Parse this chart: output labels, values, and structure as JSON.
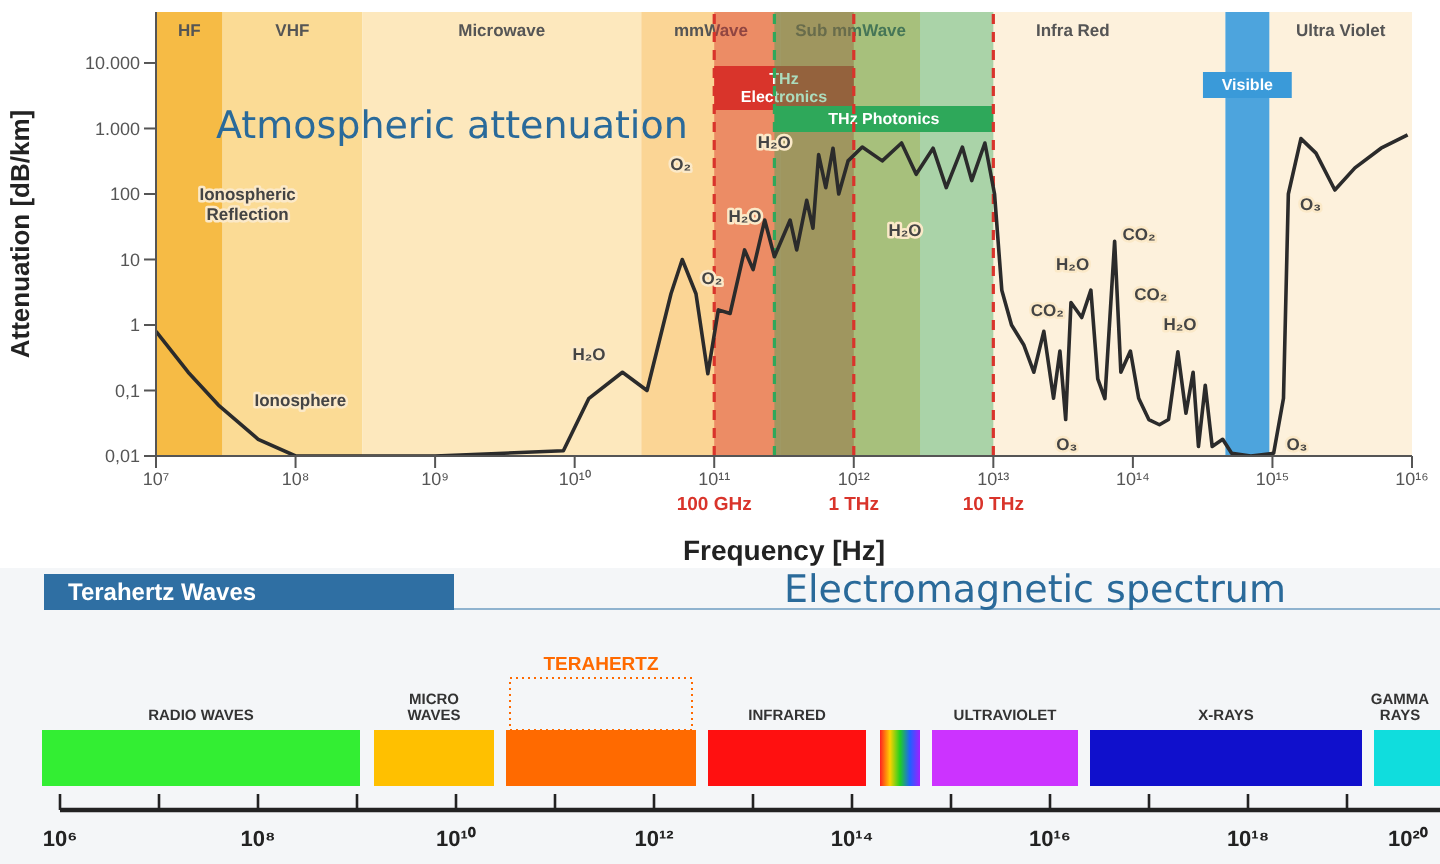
{
  "chart_data": [
    {
      "type": "line",
      "title": "Atmospheric attenuation",
      "xlabel": "Frequency [Hz]",
      "ylabel": "Attenuation [dB/km]",
      "log": "xy",
      "xlim": [
        10000000.0,
        1e+16
      ],
      "ylim": [
        0.01,
        60000
      ],
      "xticks": [
        {
          "value": 10000000.0,
          "label": "10⁷"
        },
        {
          "value": 100000000.0,
          "label": "10⁸"
        },
        {
          "value": 1000000000.0,
          "label": "10⁹"
        },
        {
          "value": 10000000000.0,
          "label": "10¹⁰"
        },
        {
          "value": 100000000000.0,
          "label": "10¹¹"
        },
        {
          "value": 1000000000000.0,
          "label": "10¹²"
        },
        {
          "value": 10000000000000.0,
          "label": "10¹³"
        },
        {
          "value": 100000000000000.0,
          "label": "10¹⁴"
        },
        {
          "value": 1000000000000000.0,
          "label": "10¹⁵"
        },
        {
          "value": 1e+16,
          "label": "10¹⁶"
        }
      ],
      "yticks": [
        {
          "value": 0.01,
          "label": "0,01"
        },
        {
          "value": 0.1,
          "label": "0,1"
        },
        1,
        10,
        100,
        {
          "value": 1000,
          "label": "1.000"
        },
        {
          "value": 10000,
          "label": "10.000"
        }
      ],
      "x": [
        10000000.0,
        17000000.0,
        28000000.0,
        54000000.0,
        100000000.0,
        1000000000.0,
        8300000000.0,
        12600000000.0,
        22000000000.0,
        33000000000.0,
        49000000000.0,
        59000000000.0,
        74000000000.0,
        90000000000.0,
        107000000000.0,
        130000000000.0,
        165000000000.0,
        190000000000.0,
        230000000000.0,
        270000000000.0,
        350000000000.0,
        390000000000.0,
        460000000000.0,
        510000000000.0,
        560000000000.0,
        630000000000.0,
        710000000000.0,
        780000000000.0,
        910000000000.0,
        1150000000000.0,
        1600000000000.0,
        2200000000000.0,
        2800000000000.0,
        3700000000000.0,
        4600000000000.0,
        6000000000000.0,
        7000000000000.0,
        8700000000000.0,
        10200000000000.0,
        11500000000000.0,
        13500000000000.0,
        16500000000000.0,
        19500000000000.0,
        23000000000000.0,
        27000000000000.0,
        30000000000000.0,
        33000000000000.0,
        36000000000000.0,
        43000000000000.0,
        50000000000000.0,
        56000000000000.0,
        63000000000000.0,
        74000000000000.0,
        82000000000000.0,
        96000000000000.0,
        110000000000000.0,
        130000000000000.0,
        155000000000000.0,
        180000000000000.0,
        210000000000000.0,
        240000000000000.0,
        270000000000000.0,
        295000000000000.0,
        330000000000000.0,
        370000000000000.0,
        440000000000000.0,
        510000000000000.0,
        700000000000000.0,
        1020000000000000.0,
        1200000000000000.0,
        1300000000000000.0,
        1600000000000000.0,
        2050000000000000.0,
        2800000000000000.0,
        3900000000000000.0,
        6000000000000000.0,
        9300000000000000.0
      ],
      "series": [
        {
          "color": "#2b2b2b",
          "values": [
            0.8,
            0.19,
            0.06,
            0.018,
            0.01,
            0.01,
            0.012,
            0.075,
            0.19,
            0.1,
            3,
            10,
            3,
            0.18,
            1.7,
            1.5,
            14,
            7,
            40,
            11,
            40,
            14,
            80,
            30,
            400,
            125,
            500,
            100,
            320,
            520,
            320,
            600,
            200,
            500,
            125,
            520,
            160,
            600,
            100,
            3.4,
            1,
            0.5,
            0.19,
            0.8,
            0.076,
            0.4,
            0.036,
            2.2,
            1.3,
            3.4,
            0.15,
            0.075,
            19,
            0.19,
            0.4,
            0.076,
            0.036,
            0.03,
            0.036,
            0.39,
            0.045,
            0.19,
            0.014,
            0.12,
            0.014,
            0.018,
            0.011,
            0.01,
            0.011,
            0.076,
            100,
            700,
            420,
            115,
            250,
            500,
            800
          ]
        }
      ],
      "bands": [
        {
          "axis": "x",
          "from": 10000000.0,
          "to": 30000000.0,
          "label": "HF",
          "color": "#f6bb45"
        },
        {
          "axis": "x",
          "from": 30000000.0,
          "to": 300000000.0,
          "label": "VHF",
          "color": "#fbdb95"
        },
        {
          "axis": "x",
          "from": 300000000.0,
          "to": 30000000000.0,
          "label": "Microwave",
          "color": "#fde8bd"
        },
        {
          "axis": "x",
          "from": 30000000000.0,
          "to": 300000000000.0,
          "label": "mmWave",
          "color": "#fbd595"
        },
        {
          "axis": "x",
          "from": 300000000000.0,
          "to": 3000000000000.0,
          "label": "Sub mmWave",
          "color": "#f9d193"
        },
        {
          "axis": "x",
          "from": 3000000000000.0,
          "to": 460000000000000.0,
          "label": "Infra Red",
          "color": "#fdf1dc"
        },
        {
          "axis": "x",
          "from": 950000000000000.0,
          "to": 1e+16,
          "label": "Ultra Violet",
          "color": "#fdf1dc"
        },
        {
          "axis": "x",
          "from": 100000000000.0,
          "to": 1000000000000.0,
          "label": "THz Electronics",
          "color": "#d9342b"
        },
        {
          "axis": "x",
          "from": 270000000000.0,
          "to": 10000000000000.0,
          "label": "THz Photonics",
          "color": "#2ea85a"
        },
        {
          "axis": "x",
          "from": 460000000000000.0,
          "to": 950000000000000.0,
          "label": "Visible",
          "color": "#3a9ad9"
        }
      ],
      "ref_lines": [
        {
          "axis": "x",
          "value": 100000000000.0,
          "label": "100 GHz",
          "color": "#d9342b",
          "line_style": "dashed"
        },
        {
          "axis": "x",
          "value": 1000000000000.0,
          "label": "1 THz",
          "color": "#d9342b",
          "line_style": "dashed"
        },
        {
          "axis": "x",
          "value": 10000000000000.0,
          "label": "10 THz",
          "color": "#d9342b",
          "line_style": "dashed"
        },
        {
          "axis": "x",
          "value": 270000000000.0,
          "label": null,
          "color": "#2ea85a",
          "line_style": "dashed"
        }
      ],
      "annotations": [
        "Ionospheric Reflection",
        "Ionosphere",
        "H₂O",
        "O₂",
        "O₂",
        "H₂O",
        "H₂O",
        "H₂O",
        "CO₂",
        "H₂O",
        "CO₂",
        "CO₂",
        "H₂O",
        "O₃",
        "O₃",
        "O₃"
      ]
    },
    {
      "type": "other",
      "title": "Electromagnetic spectrum",
      "annotations": [
        "Terahertz Waves",
        "RADIO WAVES",
        "MICRO WAVES",
        "TERAHERTZ",
        "INFRARED",
        "ULTRAVIOLET",
        "X-RAYS",
        "GAMMA RAYS",
        "10⁶",
        "10⁸",
        "10¹⁰",
        "10¹²",
        "10¹⁴",
        "10¹⁶",
        "10¹⁸",
        "10²⁰"
      ]
    }
  ]
}
